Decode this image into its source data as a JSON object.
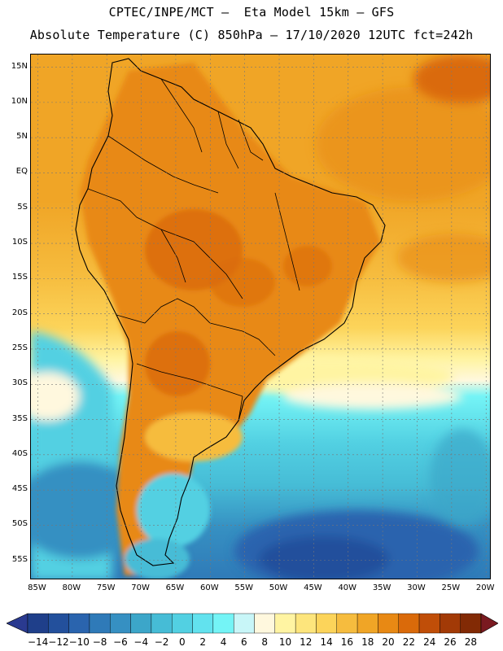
{
  "header": {
    "title_line1": "CPTEC/INPE/MCT –  Eta Model 15km – GFS",
    "title_line2": "Absolute Temperature (C) 850hPa – 17/10/2020 12UTC fct=242h"
  },
  "map": {
    "lat_labels": [
      "15N",
      "10N",
      "5N",
      "EQ",
      "5S",
      "10S",
      "15S",
      "20S",
      "25S",
      "30S",
      "35S",
      "40S",
      "45S",
      "50S",
      "55S"
    ],
    "lon_labels": [
      "85W",
      "80W",
      "75W",
      "70W",
      "65W",
      "60W",
      "55W",
      "50W",
      "45W",
      "40W",
      "35W",
      "30W",
      "25W",
      "20W"
    ],
    "region": "South America"
  },
  "colorbar": {
    "labels": [
      "-14",
      "-12",
      "-10",
      "-8",
      "-6",
      "-4",
      "-2",
      "0",
      "2",
      "4",
      "6",
      "8",
      "10",
      "12",
      "14",
      "16",
      "18",
      "20",
      "22",
      "24",
      "26",
      "28"
    ],
    "colors": [
      "#1f3f8a",
      "#23509c",
      "#2a64ae",
      "#2f7ab8",
      "#3690c2",
      "#3ca6c9",
      "#46bcd6",
      "#52d0e2",
      "#62e2ee",
      "#74f4f6",
      "#c8f6f8",
      "#fff8de",
      "#fff4a2",
      "#fde57c",
      "#fcd45a",
      "#f6bc3e",
      "#f0a526",
      "#e88914",
      "#da6a0a",
      "#c04e08",
      "#a23a06",
      "#822a05"
    ],
    "under_color": "#2a3a90",
    "over_color": "#7a1a20"
  }
}
